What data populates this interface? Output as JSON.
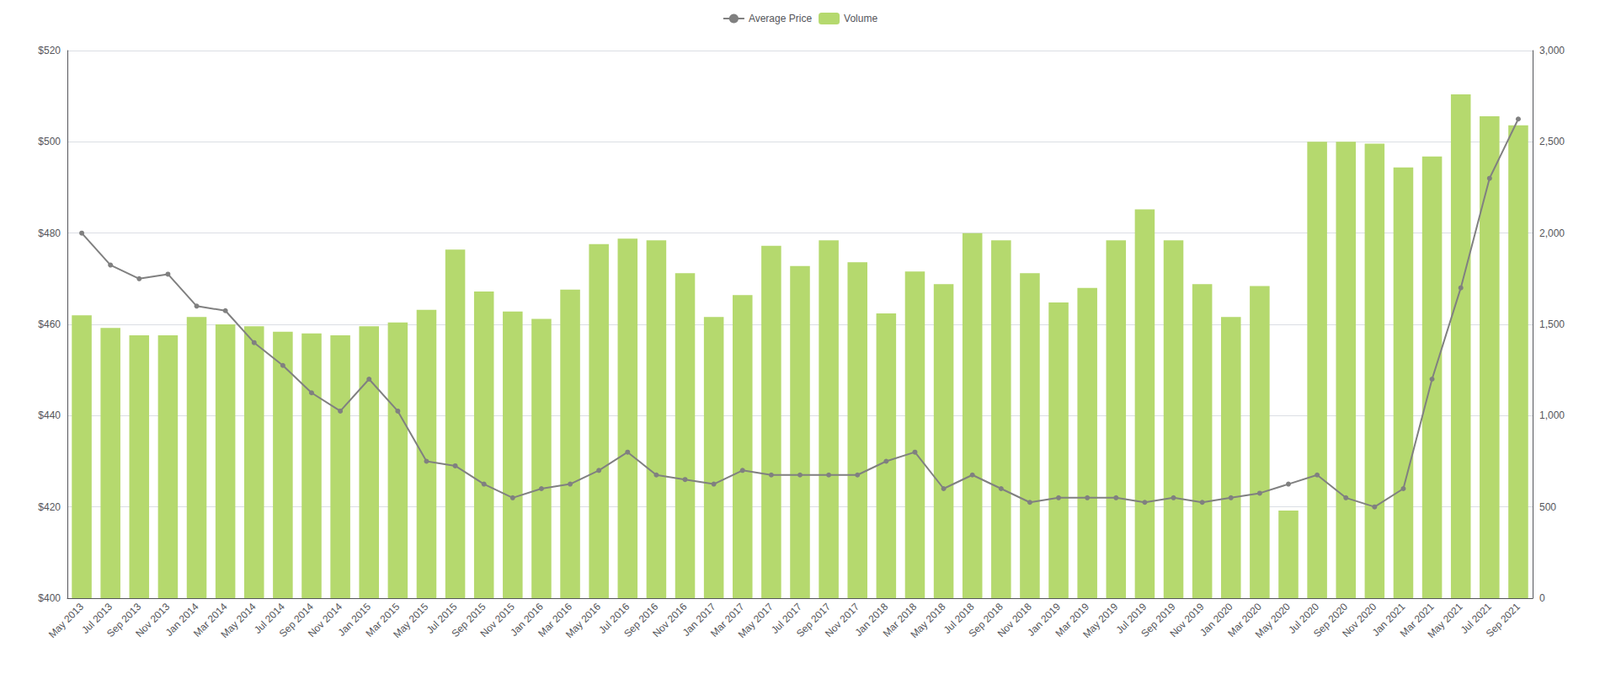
{
  "chart_data": {
    "type": "combo",
    "categories": [
      "May 2013",
      "Jul 2013",
      "Sep 2013",
      "Nov 2013",
      "Jan 2014",
      "Mar 2014",
      "May 2014",
      "Jul 2014",
      "Sep 2014",
      "Nov 2014",
      "Jan 2015",
      "Mar 2015",
      "May 2015",
      "Jul 2015",
      "Sep 2015",
      "Nov 2015",
      "Jan 2016",
      "Mar 2016",
      "May 2016",
      "Jul 2016",
      "Sep 2016",
      "Nov 2016",
      "Jan 2017",
      "Mar 2017",
      "May 2017",
      "Jul 2017",
      "Sep 2017",
      "Nov 2017",
      "Jan 2018",
      "Mar 2018",
      "May 2018",
      "Jul 2018",
      "Sep 2018",
      "Nov 2018",
      "Jan 2019",
      "Mar 2019",
      "May 2019",
      "Jul 2019",
      "Sep 2019",
      "Nov 2019",
      "Jan 2020",
      "Mar 2020",
      "May 2020",
      "Jul 2020",
      "Sep 2020",
      "Nov 2020",
      "Jan 2021",
      "Mar 2021",
      "May 2021",
      "Jul 2021",
      "Sep 2021"
    ],
    "series": [
      {
        "name": "Average Price",
        "type": "line",
        "axis": "y",
        "color": "#808080",
        "marker": "circle",
        "values": [
          480,
          473,
          470,
          471,
          464,
          463,
          456,
          451,
          445,
          441,
          448,
          441,
          430,
          429,
          425,
          422,
          424,
          425,
          428,
          432,
          427,
          426,
          425,
          428,
          427,
          427,
          427,
          427,
          430,
          432,
          424,
          427,
          424,
          421,
          422,
          422,
          422,
          421,
          422,
          421,
          422,
          423,
          425,
          427,
          422,
          420,
          424,
          448,
          468,
          492,
          505
        ]
      },
      {
        "name": "Volume",
        "type": "bar",
        "axis": "y2",
        "color": "#b5d96e",
        "values": [
          1550,
          1480,
          1440,
          1440,
          1540,
          1500,
          1490,
          1460,
          1450,
          1440,
          1490,
          1510,
          1580,
          1910,
          1680,
          1570,
          1530,
          1690,
          1940,
          1970,
          1960,
          1780,
          1540,
          1660,
          1930,
          1820,
          1960,
          1840,
          1560,
          1790,
          1720,
          2000,
          1960,
          1780,
          1620,
          1700,
          1960,
          2130,
          1960,
          1720,
          1540,
          1710,
          480,
          2500,
          2500,
          2490,
          2360,
          2420,
          2760,
          2640,
          2590
        ]
      }
    ],
    "ylim": [
      400,
      520
    ],
    "yticks": [
      {
        "value": 400,
        "label": "$400"
      },
      {
        "value": 420,
        "label": "$420"
      },
      {
        "value": 440,
        "label": "$440"
      },
      {
        "value": 460,
        "label": "$460"
      },
      {
        "value": 480,
        "label": "$480"
      },
      {
        "value": 500,
        "label": "$500"
      },
      {
        "value": 520,
        "label": "$520"
      }
    ],
    "y2lim": [
      0,
      3000
    ],
    "y2ticks": [
      0,
      500,
      {
        "value": 1000,
        "label": "1,000"
      },
      {
        "value": 1500,
        "label": "1,500"
      },
      {
        "value": 2000,
        "label": "2,000"
      },
      {
        "value": 2500,
        "label": "2,500"
      },
      {
        "value": 3000,
        "label": "3,000"
      }
    ],
    "grid": true,
    "legend": "top"
  }
}
